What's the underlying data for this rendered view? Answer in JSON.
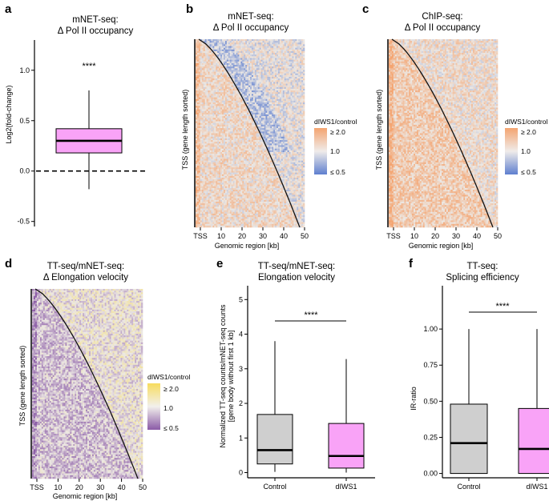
{
  "colors": {
    "orange": "#f4a470",
    "blue": "#5f7fcf",
    "pink": "#f9a3f7",
    "gray_box": "#cfcfcf",
    "gold": "#f7dc5e",
    "purple": "#8a5aa6",
    "neutral": "#e8e4e0"
  },
  "panels": {
    "a": {
      "label": "a",
      "title1": "mNET-seq:",
      "title2": "Δ Pol II occupancy",
      "ylabel": "Log2(fold-change)",
      "significance": "****",
      "chart_data": {
        "type": "box",
        "ylim": [
          -0.55,
          1.3
        ],
        "yticks": [
          "-0.5",
          "0.0",
          "0.5",
          "1.0"
        ],
        "ytick_values": [
          -0.5,
          0.0,
          0.5,
          1.0
        ],
        "box": {
          "whisker_low": -0.18,
          "q1": 0.18,
          "median": 0.3,
          "q3": 0.42,
          "whisker_high": 0.8
        },
        "reference_line": 0.0
      }
    },
    "b": {
      "label": "b",
      "title1": "mNET-seq:",
      "title2": "Δ Pol II occupancy",
      "ylabel": "TSS (gene length sorted)",
      "xlabel": "Genomic region [kb]",
      "xticks": [
        "TSS",
        "10",
        "20",
        "30",
        "40",
        "50"
      ],
      "legend_title": "dIWS1/control",
      "legend_labels": [
        "≥ 2.0",
        "1.0",
        "≤ 0.5"
      ]
    },
    "c": {
      "label": "c",
      "title1": "ChIP-seq:",
      "title2": "Δ Pol II occupancy",
      "ylabel": "TSS (gene length sorted)",
      "xlabel": "Genomic region [kb]",
      "xticks": [
        "TSS",
        "10",
        "20",
        "30",
        "40",
        "50"
      ],
      "legend_title": "dIWS1/control",
      "legend_labels": [
        "≥ 2.0",
        "1.0",
        "≤ 0.5"
      ]
    },
    "d": {
      "label": "d",
      "title1": "TT-seq/mNET-seq:",
      "title2": "Δ Elongation velocity",
      "ylabel": "TSS (gene length sorted)",
      "xlabel": "Genomic region [kb]",
      "xticks": [
        "TSS",
        "10",
        "20",
        "30",
        "40",
        "50"
      ],
      "legend_title": "dIWS1/control",
      "legend_labels": [
        "≥ 2.0",
        "1.0",
        "≤ 0.5"
      ]
    },
    "e": {
      "label": "e",
      "title1": "TT-seq/mNET-seq:",
      "title2": "Elongation velocity",
      "ylabel1": "Normalized TT-seq counts/mNET-seq counts",
      "ylabel2": "[gene body without first 1 kb]",
      "significance": "****",
      "chart_data": {
        "type": "box",
        "categories": [
          "Control",
          "dIWS1"
        ],
        "ylim": [
          -0.15,
          5.4
        ],
        "yticks": [
          "0",
          "1",
          "2",
          "3",
          "4",
          "5"
        ],
        "ytick_values": [
          0,
          1,
          2,
          3,
          4,
          5
        ],
        "boxes": [
          {
            "name": "Control",
            "whisker_low": 0.02,
            "q1": 0.25,
            "median": 0.65,
            "q3": 1.68,
            "whisker_high": 3.8,
            "color": "#cfcfcf"
          },
          {
            "name": "dIWS1",
            "whisker_low": 0.0,
            "q1": 0.13,
            "median": 0.48,
            "q3": 1.42,
            "whisker_high": 3.28,
            "color": "#f9a3f7"
          }
        ]
      }
    },
    "f": {
      "label": "f",
      "title1": "TT-seq:",
      "title2": "Splicing efficiency",
      "ylabel": "IR-ratio",
      "significance": "****",
      "chart_data": {
        "type": "box",
        "categories": [
          "Control",
          "dIWS1"
        ],
        "ylim": [
          -0.03,
          1.3
        ],
        "yticks": [
          "0.00",
          "0.25",
          "0.50",
          "0.75",
          "1.00"
        ],
        "ytick_values": [
          0,
          0.25,
          0.5,
          0.75,
          1.0
        ],
        "boxes": [
          {
            "name": "Control",
            "whisker_low": 0.0,
            "q1": 0.0,
            "median": 0.21,
            "q3": 0.48,
            "whisker_high": 1.0,
            "color": "#cfcfcf"
          },
          {
            "name": "dIWS1",
            "whisker_low": 0.0,
            "q1": 0.0,
            "median": 0.17,
            "q3": 0.45,
            "whisker_high": 1.0,
            "color": "#f9a3f7"
          }
        ]
      }
    }
  }
}
